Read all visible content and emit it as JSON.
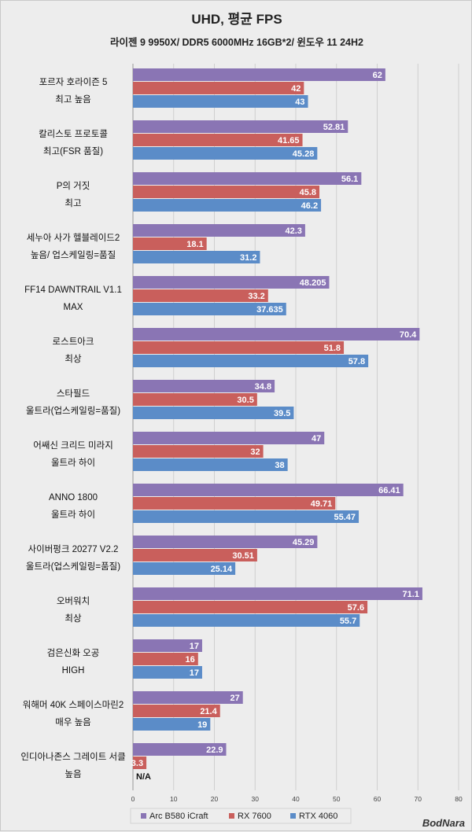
{
  "chart_data": {
    "type": "bar",
    "orientation": "horizontal",
    "title": "UHD, 평균 FPS",
    "subtitle": "라이젠 9 9950X/ DDR5 6000MHz 16GB*2/ 윈도우 11 24H2",
    "categories": [
      [
        "포르자 호라이즌 5",
        "최고 높음"
      ],
      [
        "칼리스토 프로토콜",
        "최고(FSR 품질)"
      ],
      [
        "P의 거짓",
        "최고"
      ],
      [
        "세누아 사가 헬블레이드2",
        "높음/ 업스케일링=품질"
      ],
      [
        "FF14 DAWNTRAIL V1.1",
        "MAX"
      ],
      [
        "로스트아크",
        "최상"
      ],
      [
        "스타필드",
        "울트라(업스케일링=품질)"
      ],
      [
        "어쌔신 크리드 미라지",
        "울트라 하이"
      ],
      [
        "ANNO 1800",
        "울트라 하이"
      ],
      [
        "사이버펑크 20277 V2.2",
        "울트라(업스케일링=품질)"
      ],
      [
        "오버워치",
        "최상"
      ],
      [
        "검은신화 오공",
        "HIGH"
      ],
      [
        "워해머 40K 스페이스마린2",
        "매우 높음"
      ],
      [
        "인디아나존스 그레이트 서클",
        "높음"
      ]
    ],
    "series": [
      {
        "name": "Arc B580 iCraft",
        "color": "#8a75b4",
        "values": [
          62,
          52.81,
          56.1,
          42.3,
          48.205,
          70.4,
          34.8,
          47,
          66.41,
          45.29,
          71.1,
          17,
          27,
          22.9
        ],
        "labels": [
          "62",
          "52.81",
          "56.1",
          "42.3",
          "48.205",
          "70.4",
          "34.8",
          "47",
          "66.41",
          "45.29",
          "71.1",
          "17",
          "27",
          "22.9"
        ]
      },
      {
        "name": "RX 7600",
        "color": "#c95f5c",
        "values": [
          42,
          41.65,
          45.8,
          18.1,
          33.2,
          51.8,
          30.5,
          32,
          49.71,
          30.51,
          57.6,
          16,
          21.4,
          3.3
        ],
        "labels": [
          "42",
          "41.65",
          "45.8",
          "18.1",
          "33.2",
          "51.8",
          "30.5",
          "32",
          "49.71",
          "30.51",
          "57.6",
          "16",
          "21.4",
          "3.3"
        ]
      },
      {
        "name": "RTX 4060",
        "color": "#5b8cc8",
        "values": [
          43,
          45.28,
          46.2,
          31.2,
          37.635,
          57.8,
          39.5,
          38,
          55.47,
          25.14,
          55.7,
          17,
          19,
          null
        ],
        "labels": [
          "43",
          "45.28",
          "46.2",
          "31.2",
          "37.635",
          "57.8",
          "39.5",
          "38",
          "55.47",
          "25.14",
          "55.7",
          "17",
          "19",
          "N/A"
        ]
      }
    ],
    "xlim": [
      0,
      80
    ],
    "xticks": [
      0,
      10,
      20,
      30,
      40,
      50,
      60,
      70,
      80
    ],
    "grid": true,
    "legend_position": "bottom"
  },
  "watermark": "BodNara"
}
